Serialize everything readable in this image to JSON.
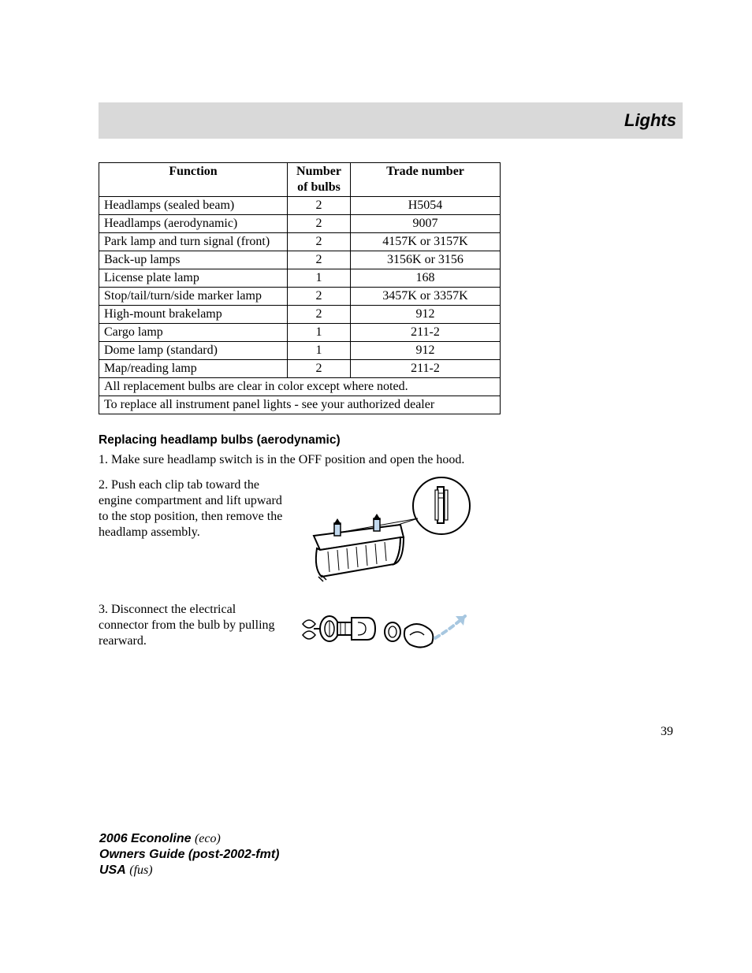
{
  "header": {
    "title": "Lights"
  },
  "table": {
    "headers": [
      "Function",
      "Number of bulbs",
      "Trade number"
    ],
    "rows": [
      {
        "fn": "Headlamps (sealed beam)",
        "n": "2",
        "trade": "H5054"
      },
      {
        "fn": "Headlamps (aerodynamic)",
        "n": "2",
        "trade": "9007"
      },
      {
        "fn": "Park lamp and turn signal (front)",
        "n": "2",
        "trade": "4157K or 3157K"
      },
      {
        "fn": "Back-up lamps",
        "n": "2",
        "trade": "3156K or 3156"
      },
      {
        "fn": "License plate lamp",
        "n": "1",
        "trade": "168"
      },
      {
        "fn": "Stop/tail/turn/side marker lamp",
        "n": "2",
        "trade": "3457K or 3357K"
      },
      {
        "fn": "High-mount brakelamp",
        "n": "2",
        "trade": "912"
      },
      {
        "fn": "Cargo lamp",
        "n": "1",
        "trade": "211-2"
      },
      {
        "fn": "Dome lamp (standard)",
        "n": "1",
        "trade": "912"
      },
      {
        "fn": "Map/reading lamp",
        "n": "2",
        "trade": "211-2"
      }
    ],
    "notes": [
      "All replacement bulbs are clear in color except where noted.",
      "To replace all instrument panel lights - see your authorized dealer"
    ]
  },
  "section": {
    "heading": "Replacing headlamp bulbs (aerodynamic)",
    "step1": "1. Make sure headlamp switch is in the OFF position and open the hood.",
    "step2": "2. Push each clip tab toward the engine compartment and lift upward to the stop position, then remove the headlamp assembly.",
    "step3": "3. Disconnect the electrical connector from the bulb by pulling rearward."
  },
  "illustrations": {
    "step2": {
      "stroke": "#000000",
      "fill_highlight": "#c2d9ee",
      "arrow_fill": "#000000"
    },
    "step3": {
      "stroke": "#000000",
      "arrow_color": "#a7c7e0"
    }
  },
  "page_number": "39",
  "footer": {
    "line1_bold": "2006 Econoline",
    "line1_book": "(eco)",
    "line2_bold": "Owners Guide (post-2002-fmt)",
    "line3_bold": "USA",
    "line3_book": "(fus)"
  },
  "styles": {
    "band_bg": "#d9d9d9",
    "page_bg": "#ffffff",
    "text": "#000000",
    "border": "#000000"
  }
}
